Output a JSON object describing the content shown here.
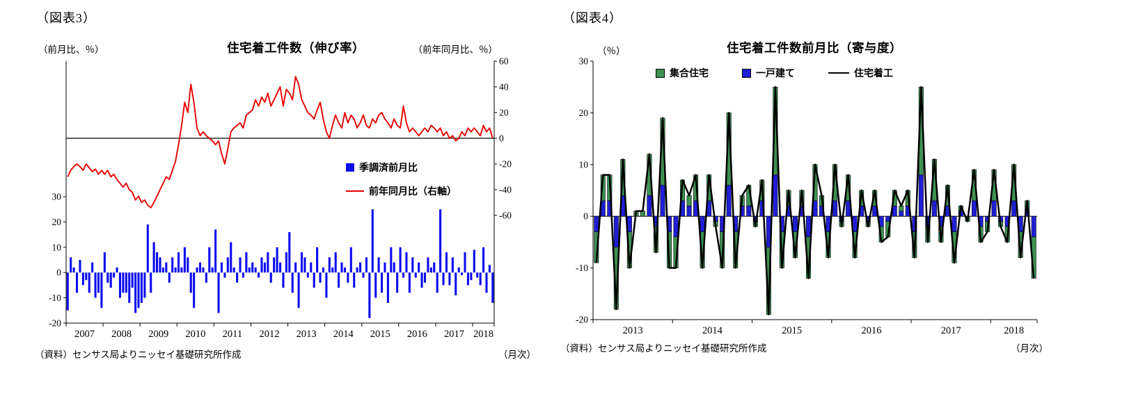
{
  "figure3": {
    "label": "（図表3）",
    "source": "（資料）センサス局よりニッセイ基礎研究所作成",
    "monthly": "（月次）"
  },
  "figure4": {
    "label": "（図表4）",
    "source": "（資料）センサス局よりニッセイ基礎研究所作成",
    "monthly": "（月次）"
  },
  "chart_data": [
    {
      "type": "bar+line",
      "title": "住宅着工件数（伸び率）",
      "x_start": "2007-01",
      "x_end": "2018-07",
      "x_year_labels": [
        "2007",
        "2008",
        "2009",
        "2010",
        "2011",
        "2012",
        "2013",
        "2014",
        "2015",
        "2016",
        "2017",
        "2018"
      ],
      "left_axis": {
        "unit": "（前月比、％）",
        "ticks": [
          30,
          20,
          10,
          0,
          -10,
          -20
        ],
        "range": [
          -20,
          83.6
        ]
      },
      "right_axis": {
        "unit": "（前年同月比、％）",
        "ticks": [
          60,
          40,
          20,
          0,
          -20,
          -40,
          -60
        ],
        "range": [
          -143.8,
          60
        ]
      },
      "series": [
        {
          "name": "季調済前月比",
          "type": "bar",
          "axis": "left",
          "color": "#0b0bef",
          "values": [
            -15,
            6,
            2,
            -8,
            5,
            -5,
            -3,
            -8,
            4,
            -10,
            -8,
            -14,
            8,
            -4,
            -6,
            -2,
            2,
            -10,
            -8,
            -8,
            -12,
            -6,
            -16,
            -14,
            -12,
            -10,
            19,
            -8,
            12,
            8,
            6,
            2,
            4,
            -4,
            6,
            2,
            8,
            2,
            10,
            6,
            -8,
            -14,
            2,
            4,
            2,
            -4,
            10,
            2,
            17,
            -16,
            4,
            -2,
            6,
            12,
            2,
            -4,
            6,
            -2,
            8,
            2,
            4,
            2,
            -2,
            6,
            4,
            8,
            -4,
            6,
            10,
            4,
            -6,
            8,
            16,
            -8,
            4,
            -14,
            8,
            6,
            -2,
            4,
            -6,
            10,
            -4,
            2,
            -10,
            6,
            2,
            8,
            -6,
            4,
            2,
            -4,
            10,
            -6,
            2,
            4,
            -2,
            6,
            -18,
            25,
            -10,
            6,
            -8,
            4,
            -12,
            10,
            4,
            -8,
            10,
            -2,
            8,
            -8,
            6,
            -2,
            4,
            -6,
            -4,
            6,
            2,
            4,
            -8,
            25,
            -5,
            8,
            -5,
            6,
            -9,
            2,
            -1,
            8,
            -5,
            -3,
            9,
            -2,
            -5,
            10,
            -8,
            3,
            -12
          ]
        },
        {
          "name": "前年同月比（右軸）",
          "type": "line",
          "axis": "right",
          "color": "#e80000",
          "values": [
            -30,
            -25,
            -22,
            -20,
            -22,
            -25,
            -20,
            -23,
            -26,
            -24,
            -28,
            -25,
            -28,
            -25,
            -30,
            -28,
            -32,
            -35,
            -38,
            -35,
            -40,
            -42,
            -48,
            -45,
            -50,
            -48,
            -52,
            -54,
            -50,
            -45,
            -40,
            -35,
            -30,
            -32,
            -25,
            -18,
            -5,
            10,
            28,
            20,
            42,
            28,
            8,
            2,
            5,
            2,
            0,
            -2,
            -5,
            -2,
            -12,
            -20,
            -8,
            5,
            8,
            10,
            12,
            8,
            18,
            20,
            22,
            30,
            25,
            32,
            28,
            35,
            25,
            30,
            35,
            40,
            25,
            38,
            35,
            30,
            48,
            42,
            30,
            25,
            20,
            18,
            15,
            22,
            28,
            15,
            5,
            0,
            10,
            18,
            12,
            8,
            20,
            12,
            18,
            15,
            8,
            12,
            18,
            10,
            8,
            15,
            12,
            18,
            20,
            15,
            12,
            8,
            15,
            10,
            8,
            25,
            12,
            5,
            8,
            5,
            2,
            5,
            8,
            5,
            10,
            8,
            5,
            8,
            2,
            5,
            0,
            2,
            -2,
            0,
            5,
            2,
            8,
            5,
            8,
            5,
            2,
            10,
            5,
            8,
            0
          ]
        }
      ]
    },
    {
      "type": "stacked-bar+line",
      "title": "住宅着工件数前月比（寄与度）",
      "x_start": "2013-01",
      "x_end": "2018-07",
      "x_year_labels": [
        "2013",
        "2014",
        "2015",
        "2016",
        "2017",
        "2018"
      ],
      "axis": {
        "unit": "（％）",
        "ticks": [
          30,
          20,
          10,
          0,
          -10,
          -20
        ],
        "range": [
          -20,
          30
        ]
      },
      "series": [
        {
          "name": "集合住宅",
          "type": "bar",
          "color": "#3d9150",
          "values": [
            -6,
            5,
            5,
            -12,
            7,
            -7,
            1,
            1,
            8,
            -5,
            13,
            -7,
            -6,
            4,
            2,
            5,
            -7,
            5,
            -1,
            -7,
            14,
            -7,
            2,
            4,
            -1,
            4,
            -13,
            17,
            -7,
            3,
            -5,
            3,
            -8,
            7,
            2,
            -5,
            7,
            -1,
            5,
            -5,
            3,
            -1,
            3,
            -3,
            -3,
            3,
            1,
            3,
            -5,
            17,
            -3,
            8,
            -3,
            4,
            -6,
            1,
            -1,
            6,
            -3,
            -2,
            6,
            -1,
            -3,
            7,
            -5,
            2,
            -8
          ]
        },
        {
          "name": "一戸建て",
          "type": "bar",
          "color": "#1f1fd6",
          "values": [
            -3,
            3,
            3,
            -6,
            4,
            -3,
            0,
            0,
            4,
            -2,
            6,
            -3,
            -4,
            3,
            2,
            3,
            -3,
            3,
            -1,
            -3,
            6,
            -3,
            2,
            2,
            -1,
            3,
            -6,
            8,
            -3,
            2,
            -3,
            2,
            -4,
            3,
            2,
            -3,
            3,
            -1,
            3,
            -3,
            2,
            -1,
            2,
            -2,
            -1,
            2,
            1,
            2,
            -3,
            8,
            -2,
            3,
            -2,
            2,
            -3,
            1,
            0,
            3,
            -2,
            -1,
            3,
            -1,
            -2,
            3,
            -3,
            1,
            -4
          ]
        },
        {
          "name": "住宅着工",
          "type": "line",
          "color": "#000000",
          "values": [
            -9,
            8,
            8,
            -18,
            11,
            -10,
            1,
            1,
            12,
            -7,
            19,
            -10,
            -10,
            7,
            4,
            8,
            -10,
            8,
            -2,
            -10,
            20,
            -10,
            4,
            6,
            -2,
            7,
            -19,
            25,
            -10,
            5,
            -8,
            5,
            -12,
            10,
            4,
            -8,
            10,
            -2,
            8,
            -8,
            5,
            -2,
            5,
            -5,
            -4,
            5,
            2,
            5,
            -8,
            25,
            -5,
            11,
            -5,
            6,
            -9,
            2,
            -1,
            9,
            -5,
            -3,
            9,
            -2,
            -5,
            10,
            -8,
            3,
            -12
          ]
        }
      ]
    }
  ]
}
